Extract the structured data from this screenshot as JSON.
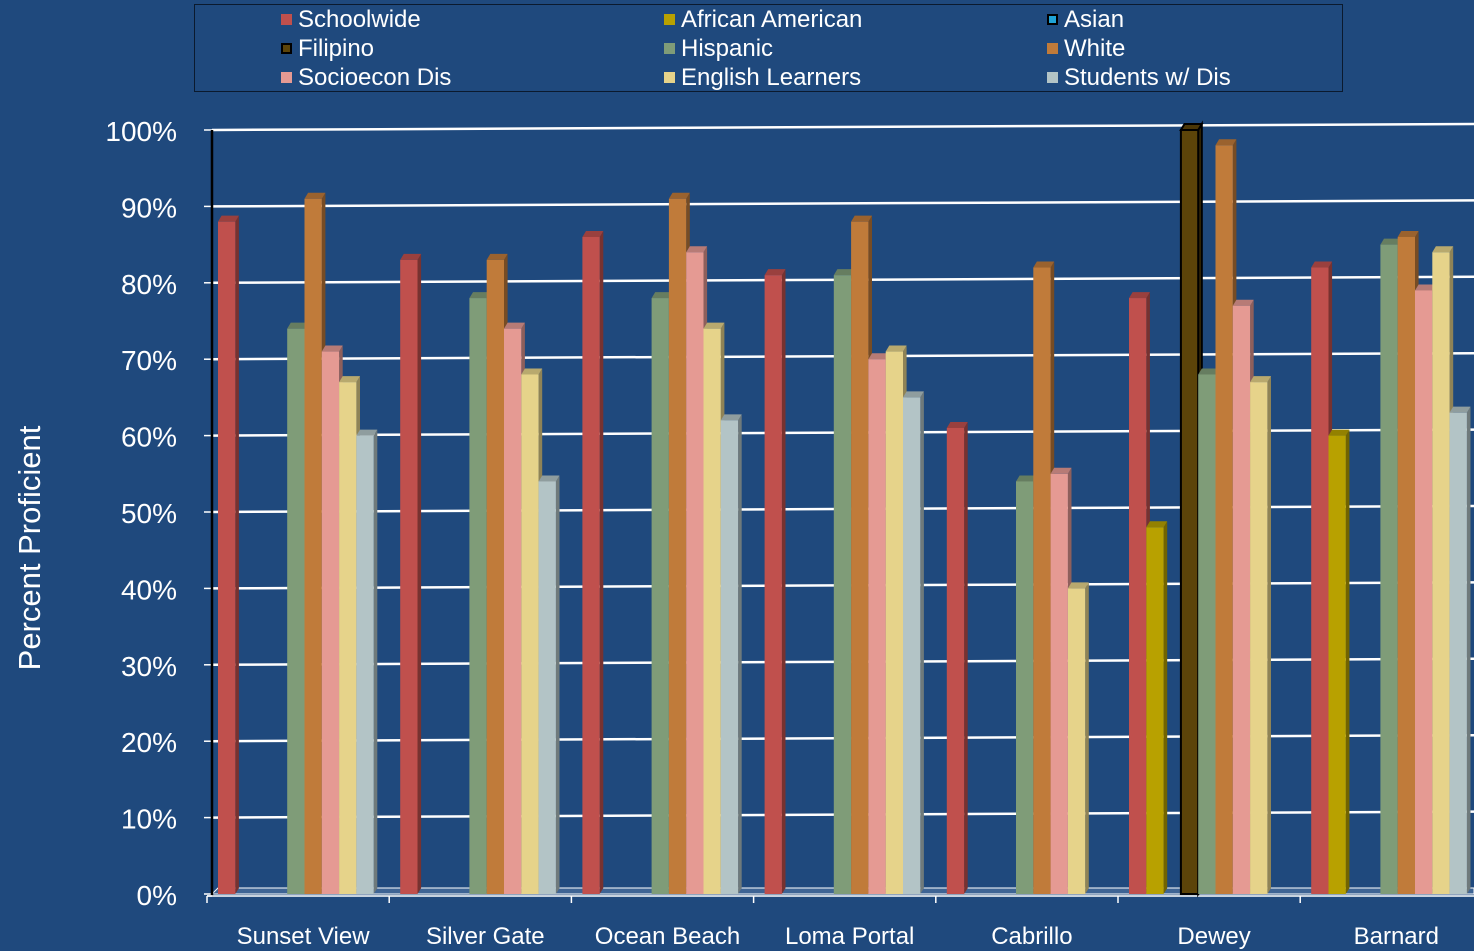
{
  "chart_data": {
    "type": "bar",
    "title": "",
    "xlabel": "",
    "ylabel": "Percent Proficient",
    "ylim": [
      0,
      100
    ],
    "yticks": [
      "0%",
      "10%",
      "20%",
      "30%",
      "40%",
      "50%",
      "60%",
      "70%",
      "80%",
      "90%",
      "100%"
    ],
    "grid": true,
    "legend_position": "top",
    "background_color": "#1f497d",
    "categories": [
      "Sunset View",
      "Silver Gate",
      "Ocean Beach",
      "Loma Portal",
      "Cabrillo",
      "Dewey",
      "Barnard"
    ],
    "series": [
      {
        "name": "Schoolwide",
        "color": "#c0504d",
        "values": [
          88,
          83,
          86,
          81,
          61,
          78,
          82
        ]
      },
      {
        "name": "African American",
        "color": "#b8a100",
        "values": [
          0,
          0,
          0,
          0,
          0,
          48,
          60
        ]
      },
      {
        "name": "Asian",
        "color": "#1fa3d6",
        "values": [
          0,
          0,
          0,
          0,
          0,
          0,
          0
        ]
      },
      {
        "name": "Filipino",
        "color": "#5c4409",
        "values": [
          0,
          0,
          0,
          0,
          0,
          100,
          0
        ]
      },
      {
        "name": "Hispanic",
        "color": "#7f9c78",
        "values": [
          74,
          78,
          78,
          81,
          54,
          68,
          85
        ]
      },
      {
        "name": "White",
        "color": "#c07b3a",
        "values": [
          91,
          83,
          91,
          88,
          82,
          98,
          86
        ]
      },
      {
        "name": "Socioecon Dis",
        "color": "#e59a93",
        "values": [
          71,
          74,
          84,
          70,
          55,
          77,
          79
        ]
      },
      {
        "name": "English Learners",
        "color": "#e6d38a",
        "values": [
          67,
          68,
          74,
          71,
          40,
          67,
          84
        ]
      },
      {
        "name": "Students w/ Dis",
        "color": "#b3c4c6",
        "values": [
          60,
          54,
          62,
          65,
          0,
          0,
          63
        ]
      }
    ]
  }
}
